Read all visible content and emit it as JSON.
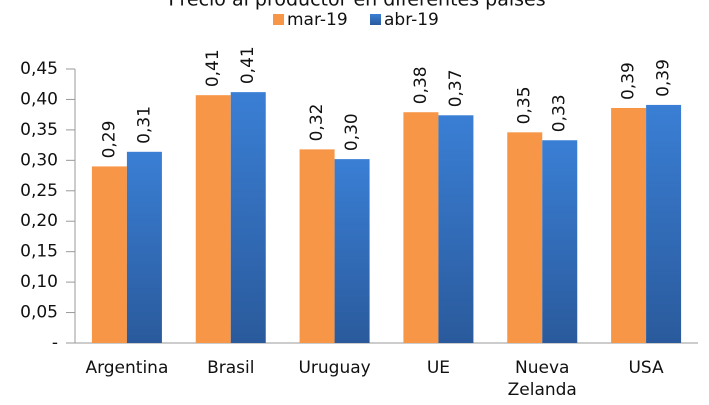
{
  "chart_data": {
    "type": "bar",
    "title": "Precio al productor en diferentes países",
    "categories": [
      "Argentina",
      "Brasil",
      "Uruguay",
      "UE",
      "Nueva Zelanda",
      "USA"
    ],
    "series": [
      {
        "name": "mar-19",
        "color": "#f79646",
        "values": [
          0.29,
          0.407,
          0.318,
          0.379,
          0.346,
          0.386
        ],
        "value_labels": [
          "0,29",
          "0,41",
          "0,32",
          "0,38",
          "0,35",
          "0,39"
        ]
      },
      {
        "name": "abr-19",
        "color": "#3a7fd5",
        "values": [
          0.314,
          0.412,
          0.302,
          0.374,
          0.333,
          0.391
        ],
        "value_labels": [
          "0,31",
          "0,41",
          "0,30",
          "0,37",
          "0,33",
          "0,39"
        ]
      }
    ],
    "ylim": [
      0,
      0.45
    ],
    "yticks": [
      {
        "value": 0,
        "label": "-"
      },
      {
        "value": 0.05,
        "label": "0,05"
      },
      {
        "value": 0.1,
        "label": "0,10"
      },
      {
        "value": 0.15,
        "label": "0,15"
      },
      {
        "value": 0.2,
        "label": "0,20"
      },
      {
        "value": 0.25,
        "label": "0,25"
      },
      {
        "value": 0.3,
        "label": "0,30"
      },
      {
        "value": 0.35,
        "label": "0,35"
      },
      {
        "value": 0.4,
        "label": "0,40"
      },
      {
        "value": 0.45,
        "label": "0,45"
      }
    ]
  }
}
